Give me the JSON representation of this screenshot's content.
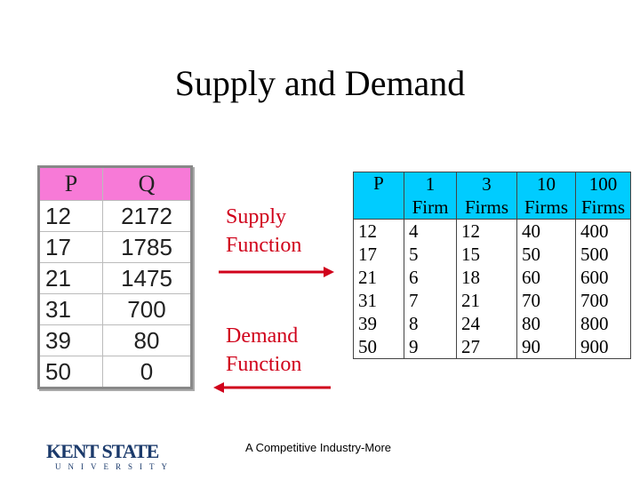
{
  "title": "Supply and Demand",
  "demand_table": {
    "header": [
      "P",
      "Q"
    ],
    "rows": [
      [
        12,
        2172
      ],
      [
        17,
        1785
      ],
      [
        21,
        1475
      ],
      [
        31,
        700
      ],
      [
        39,
        80
      ],
      [
        50,
        0
      ]
    ]
  },
  "labels": {
    "supply": [
      "Supply",
      "Function"
    ],
    "demand": [
      "Demand",
      "Function"
    ]
  },
  "supply_table": {
    "header_top": [
      "P",
      "1",
      "3",
      "10",
      "100"
    ],
    "header_bottom": [
      "Firm",
      "Firms",
      "Firms",
      "Firms"
    ],
    "rows": [
      [
        12,
        4,
        12,
        40,
        400
      ],
      [
        17,
        5,
        15,
        50,
        500
      ],
      [
        21,
        6,
        18,
        60,
        600
      ],
      [
        31,
        7,
        21,
        70,
        700
      ],
      [
        39,
        8,
        24,
        80,
        800
      ],
      [
        50,
        9,
        27,
        90,
        900
      ]
    ]
  },
  "footer": "A Competitive Industry-More",
  "logo": {
    "name": "KENT STATE",
    "sub": "UNIVERSITY"
  }
}
